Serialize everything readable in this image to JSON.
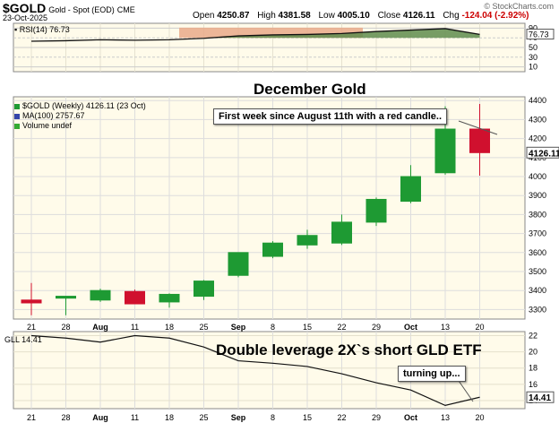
{
  "header": {
    "symbol": "$GOLD",
    "name": "Gold - Spot (EOD)",
    "exchange": "CME",
    "date": "23-Oct-2025",
    "open_label": "Open",
    "open": "4250.87",
    "high_label": "High",
    "high": "4381.58",
    "low_label": "Low",
    "low": "4005.10",
    "close_label": "Close",
    "close": "4126.11",
    "chg_label": "Chg",
    "chg": "-124.04 (-2.92%)",
    "copyright": "© StockCharts.com"
  },
  "annotations": {
    "main_title": "December Gold",
    "callout": "First week since August 11th with a red candle..",
    "lower_title": "Double leverage 2X`s short GLD ETF",
    "lower_callout": "turning up..."
  },
  "legend": {
    "price": "$GOLD (Weekly) 4126.11 (23 Oct)",
    "ma": "MA(100) 2757.67",
    "volume": "Volume undef"
  },
  "colors": {
    "up": "#1e9a33",
    "down": "#d0102e",
    "bg": "#fffbea",
    "rsi_line": "#111111",
    "rsi_fill": "#5f8c4e"
  },
  "chart_data": [
    {
      "type": "line",
      "title": "RSI(14) 76.73",
      "indicator": "RSI(14)",
      "last_value": "76.73",
      "y_ticks": [
        "90",
        "70",
        "50",
        "30",
        "10"
      ],
      "ylim": [
        0,
        100
      ],
      "overbought": 70,
      "oversold": 30,
      "x": [
        "21",
        "28",
        "Aug",
        "11",
        "18",
        "25",
        "Sep",
        "8",
        "15",
        "22",
        "29",
        "Oct",
        "13",
        "20"
      ],
      "values": [
        63,
        64,
        66,
        65,
        66,
        69,
        74,
        76,
        77,
        79,
        83,
        86,
        89,
        77
      ]
    },
    {
      "type": "candlestick",
      "symbol": "$GOLD",
      "interval": "Weekly",
      "ylim": [
        3250,
        4420
      ],
      "y_ticks": [
        "3300",
        "3400",
        "3500",
        "3600",
        "3700",
        "3800",
        "3900",
        "4000",
        "4100",
        "4200",
        "4300",
        "4400"
      ],
      "last_label": "4126.11",
      "x": [
        "21",
        "28",
        "Aug",
        "11",
        "18",
        "25",
        "Sep",
        "8",
        "15",
        "22",
        "29",
        "Oct",
        "13",
        "20"
      ],
      "open": [
        3350,
        3360,
        3350,
        3395,
        3340,
        3370,
        3480,
        3580,
        3640,
        3650,
        3760,
        3870,
        4020,
        4250
      ],
      "high": [
        3440,
        3360,
        3410,
        3405,
        3385,
        3455,
        3600,
        3660,
        3720,
        3800,
        3890,
        4060,
        4370,
        4382
      ],
      "low": [
        3270,
        3270,
        3340,
        3330,
        3310,
        3350,
        3470,
        3570,
        3620,
        3640,
        3740,
        3860,
        4010,
        4005
      ],
      "close": [
        3335,
        3370,
        3400,
        3330,
        3380,
        3450,
        3600,
        3650,
        3690,
        3760,
        3880,
        4000,
        4250,
        4126
      ]
    },
    {
      "type": "line",
      "symbol": "GLL",
      "title": "GLL 14.41",
      "last_value": "14.41",
      "ylim": [
        13,
        22.5
      ],
      "y_ticks": [
        "22",
        "20",
        "18",
        "16",
        "14"
      ],
      "x": [
        "21",
        "28",
        "Aug",
        "11",
        "18",
        "25",
        "Sep",
        "8",
        "15",
        "22",
        "29",
        "Oct",
        "13",
        "20"
      ],
      "values": [
        22,
        21.7,
        21.2,
        22,
        21.7,
        20.6,
        18.9,
        18.6,
        18.2,
        17.3,
        16.2,
        15.3,
        13.4,
        14.41
      ]
    }
  ]
}
